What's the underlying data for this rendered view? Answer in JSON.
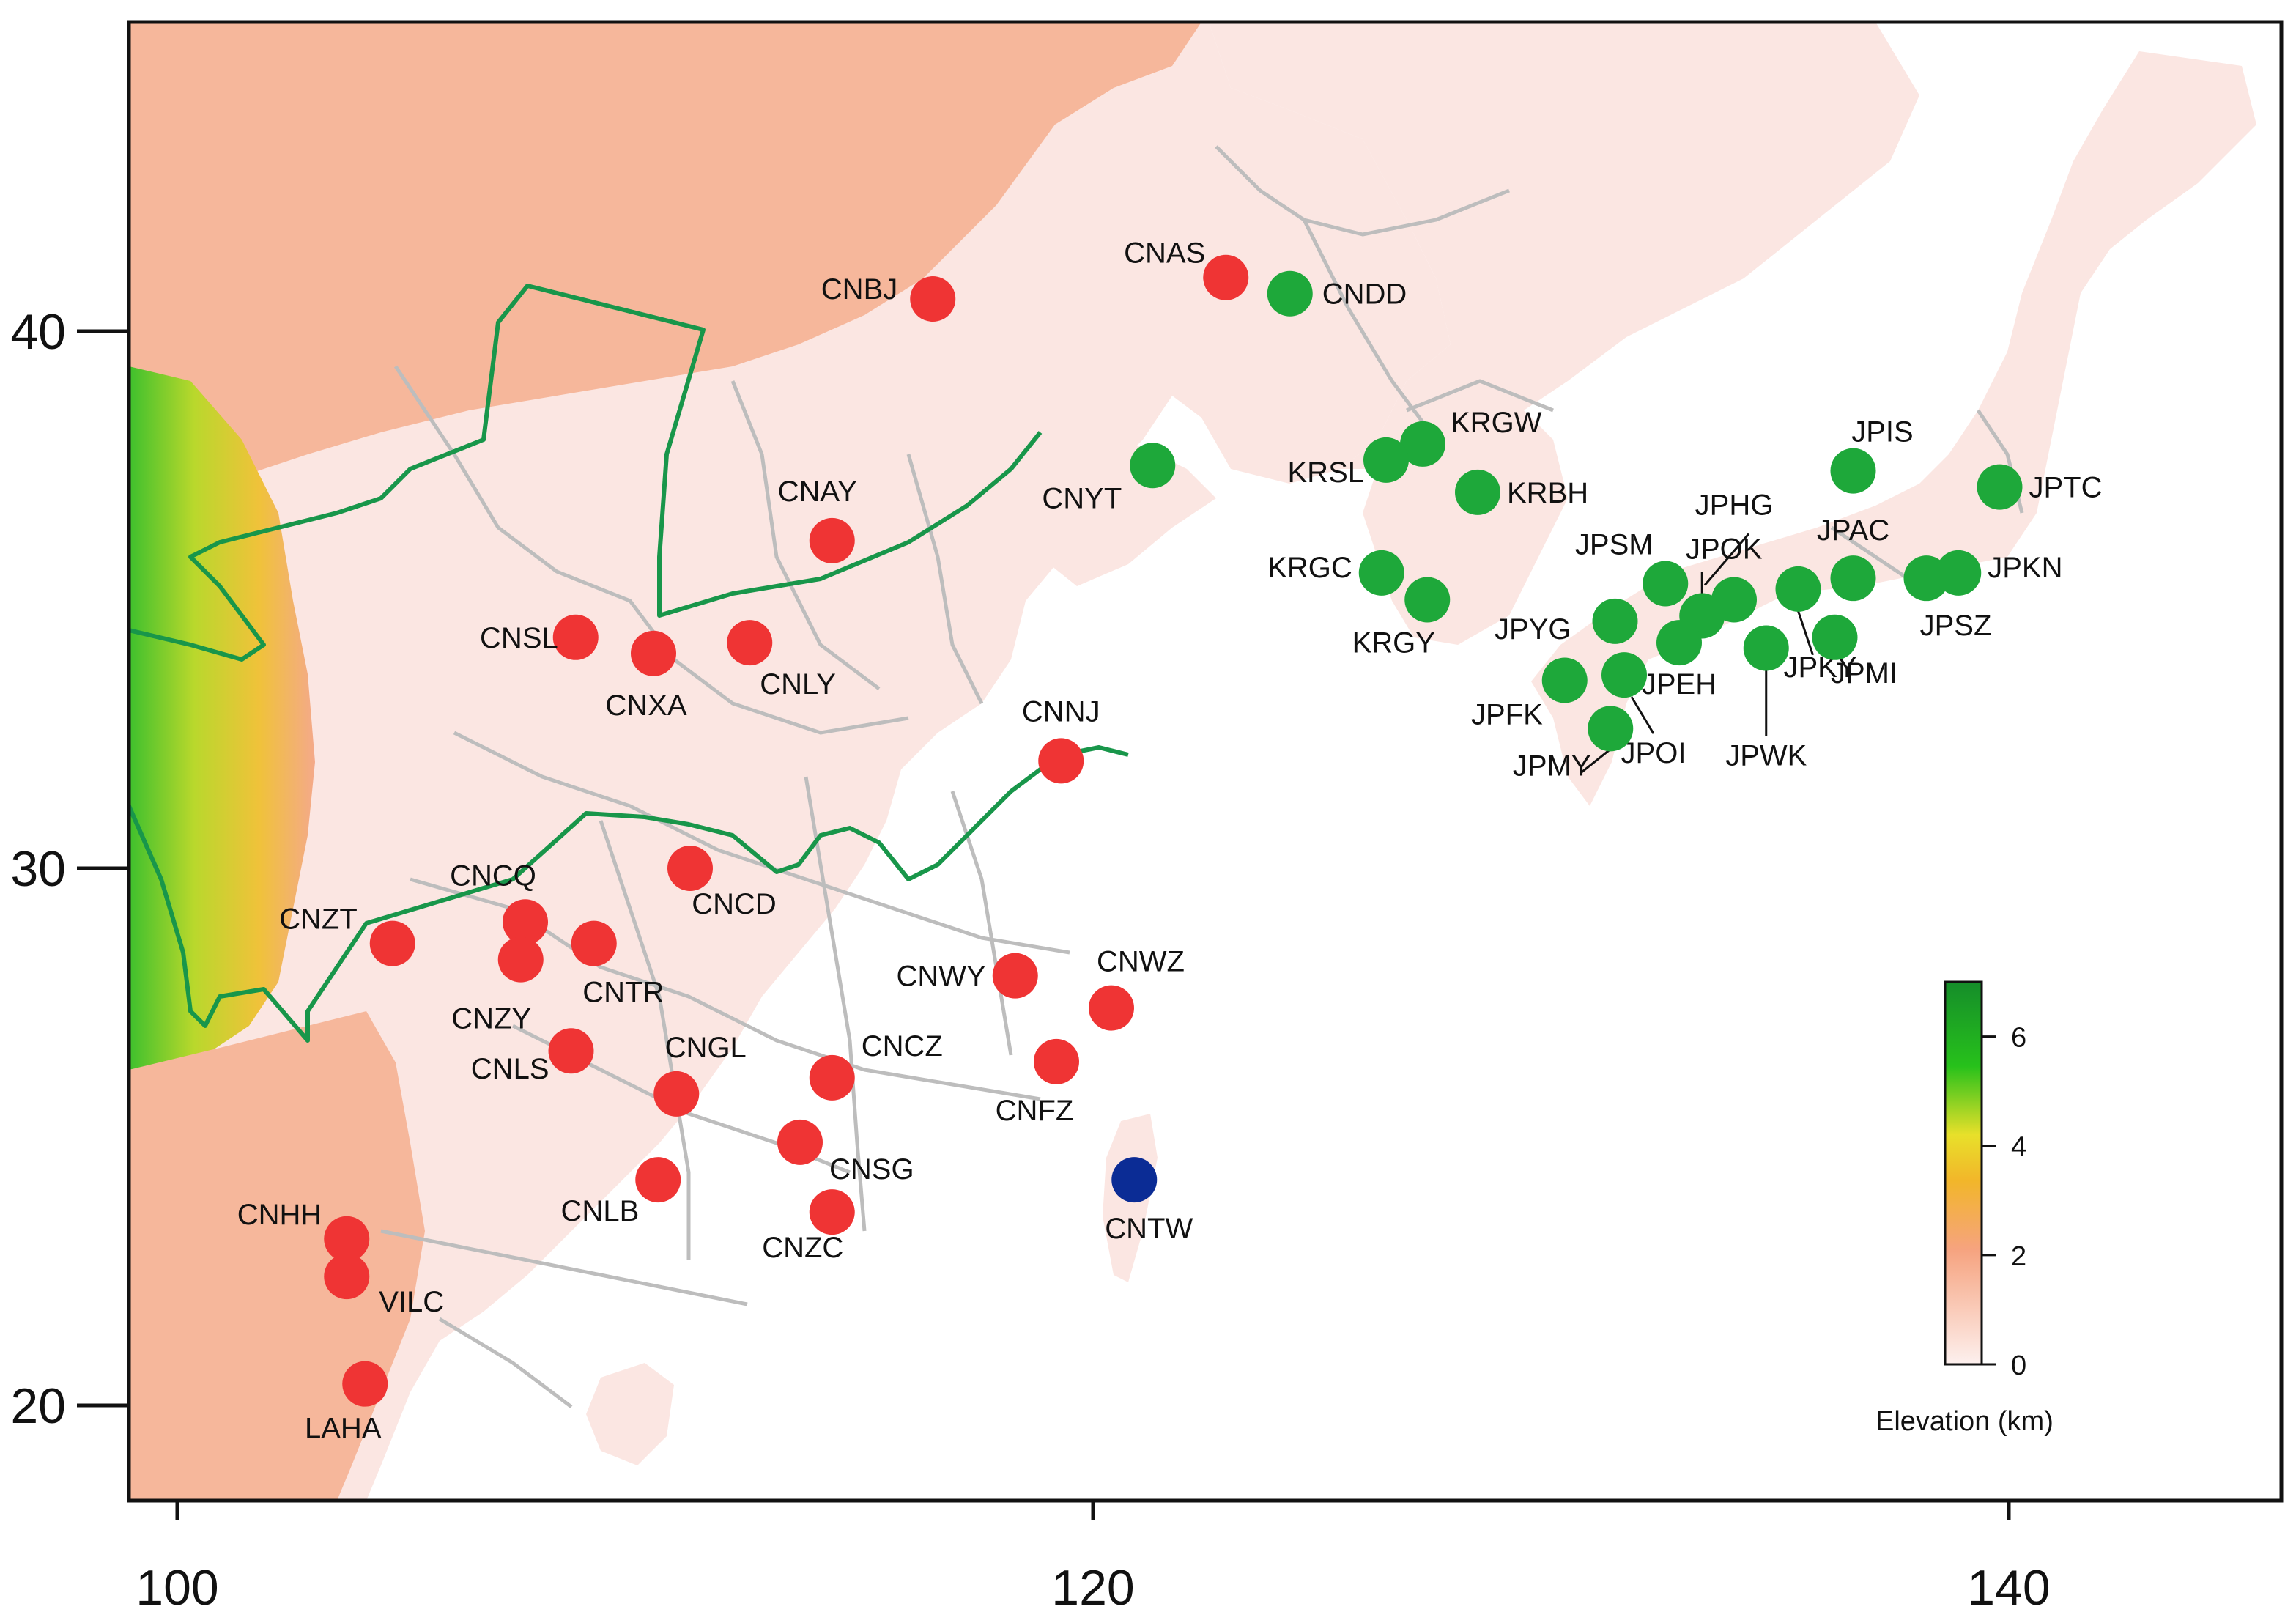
{
  "map": {
    "type": "site-map",
    "x_ticks": [
      {
        "value": 100,
        "label": "100"
      },
      {
        "value": 120,
        "label": "120"
      },
      {
        "value": 140,
        "label": "140"
      }
    ],
    "y_ticks": [
      {
        "value": 40,
        "label": "40"
      },
      {
        "value": 30,
        "label": "30"
      },
      {
        "value": 20,
        "label": "20"
      }
    ],
    "colors": {
      "red": "#ef3434",
      "green": "#1ea83a",
      "blue": "#0b2c95",
      "boundary": "#18964a",
      "border": "#bdbdbd",
      "land": "#fbe6e2",
      "highland": "#f5b295",
      "water": "#ffffff"
    },
    "legend": {
      "title": "Elevation (km)",
      "ticks": [
        {
          "value": 6,
          "label": "6"
        },
        {
          "value": 4,
          "label": "4"
        },
        {
          "value": 2,
          "label": "2"
        },
        {
          "value": 0,
          "label": "0"
        }
      ]
    },
    "sites": [
      {
        "code": "CNBJ",
        "lon": 116.5,
        "lat": 40.6,
        "group": "red"
      },
      {
        "code": "CNAS",
        "lon": 122.9,
        "lat": 41.0,
        "group": "red"
      },
      {
        "code": "CNDD",
        "lon": 124.3,
        "lat": 40.7,
        "group": "green"
      },
      {
        "code": "CNYT",
        "lon": 121.3,
        "lat": 37.5,
        "group": "green"
      },
      {
        "code": "CNAY",
        "lon": 114.3,
        "lat": 36.1,
        "group": "red"
      },
      {
        "code": "CNSL",
        "lon": 108.7,
        "lat": 34.3,
        "group": "red"
      },
      {
        "code": "CNXA",
        "lon": 110.4,
        "lat": 34.0,
        "group": "red"
      },
      {
        "code": "CNLY",
        "lon": 112.5,
        "lat": 34.2,
        "group": "red"
      },
      {
        "code": "CNNJ",
        "lon": 119.3,
        "lat": 32.0,
        "group": "red"
      },
      {
        "code": "CNCD",
        "lon": 111.2,
        "lat": 30.0,
        "group": "red"
      },
      {
        "code": "CNCQ",
        "lon": 107.6,
        "lat": 29.0,
        "group": "red"
      },
      {
        "code": "CNZT",
        "lon": 104.7,
        "lat": 28.6,
        "group": "red"
      },
      {
        "code": "CNTR",
        "lon": 109.1,
        "lat": 28.6,
        "group": "red"
      },
      {
        "code": "CNZY",
        "lon": 107.5,
        "lat": 28.3,
        "group": "red"
      },
      {
        "code": "CNWY",
        "lon": 118.3,
        "lat": 28.0,
        "group": "red"
      },
      {
        "code": "CNWZ",
        "lon": 120.4,
        "lat": 27.4,
        "group": "red"
      },
      {
        "code": "CNLS",
        "lon": 108.6,
        "lat": 26.6,
        "group": "red"
      },
      {
        "code": "CNGL",
        "lon": 110.9,
        "lat": 25.8,
        "group": "red"
      },
      {
        "code": "CNCZ",
        "lon": 114.3,
        "lat": 26.1,
        "group": "red"
      },
      {
        "code": "CNFZ",
        "lon": 119.2,
        "lat": 26.4,
        "group": "red"
      },
      {
        "code": "CNSG",
        "lon": 113.6,
        "lat": 24.9,
        "group": "red"
      },
      {
        "code": "CNLB",
        "lon": 110.5,
        "lat": 24.2,
        "group": "red"
      },
      {
        "code": "CNZC",
        "lon": 114.3,
        "lat": 23.6,
        "group": "red"
      },
      {
        "code": "CNTW",
        "lon": 120.9,
        "lat": 24.2,
        "group": "blue"
      },
      {
        "code": "CNHH",
        "lon": 103.7,
        "lat": 23.1,
        "group": "red"
      },
      {
        "code": "VILC",
        "lon": 103.7,
        "lat": 22.4,
        "group": "red"
      },
      {
        "code": "LAHA",
        "lon": 104.1,
        "lat": 20.4,
        "group": "red"
      },
      {
        "code": "KRGW",
        "lon": 127.2,
        "lat": 37.9,
        "group": "green"
      },
      {
        "code": "KRSL",
        "lon": 126.4,
        "lat": 37.6,
        "group": "green"
      },
      {
        "code": "KRBH",
        "lon": 128.4,
        "lat": 37.0,
        "group": "green"
      },
      {
        "code": "KRGC",
        "lon": 126.3,
        "lat": 35.5,
        "group": "green"
      },
      {
        "code": "KRGY",
        "lon": 127.3,
        "lat": 35.0,
        "group": "green"
      },
      {
        "code": "JPIS",
        "lon": 136.6,
        "lat": 37.4,
        "group": "green"
      },
      {
        "code": "JPTC",
        "lon": 139.8,
        "lat": 37.1,
        "group": "green"
      },
      {
        "code": "JPHG",
        "lon": 134.0,
        "lat": 35.0,
        "group": "green"
      },
      {
        "code": "JPAC",
        "lon": 136.6,
        "lat": 35.4,
        "group": "green"
      },
      {
        "code": "JPOK",
        "lon": 133.3,
        "lat": 34.7,
        "group": "green"
      },
      {
        "code": "JPSM",
        "lon": 132.5,
        "lat": 35.3,
        "group": "green"
      },
      {
        "code": "JPKN",
        "lon": 138.9,
        "lat": 35.5,
        "group": "green"
      },
      {
        "code": "JPSZ",
        "lon": 138.2,
        "lat": 35.4,
        "group": "green"
      },
      {
        "code": "JPYG",
        "lon": 131.4,
        "lat": 34.6,
        "group": "green"
      },
      {
        "code": "JPEH",
        "lon": 132.8,
        "lat": 34.2,
        "group": "green"
      },
      {
        "code": "JPKY",
        "lon": 135.4,
        "lat": 35.2,
        "group": "green"
      },
      {
        "code": "JPMI",
        "lon": 136.2,
        "lat": 34.3,
        "group": "green"
      },
      {
        "code": "JPWK",
        "lon": 134.7,
        "lat": 34.1,
        "group": "green"
      },
      {
        "code": "JPFK",
        "lon": 130.3,
        "lat": 33.5,
        "group": "green"
      },
      {
        "code": "JPOI",
        "lon": 131.6,
        "lat": 33.6,
        "group": "green"
      },
      {
        "code": "JPMY",
        "lon": 131.3,
        "lat": 32.6,
        "group": "green"
      }
    ]
  }
}
